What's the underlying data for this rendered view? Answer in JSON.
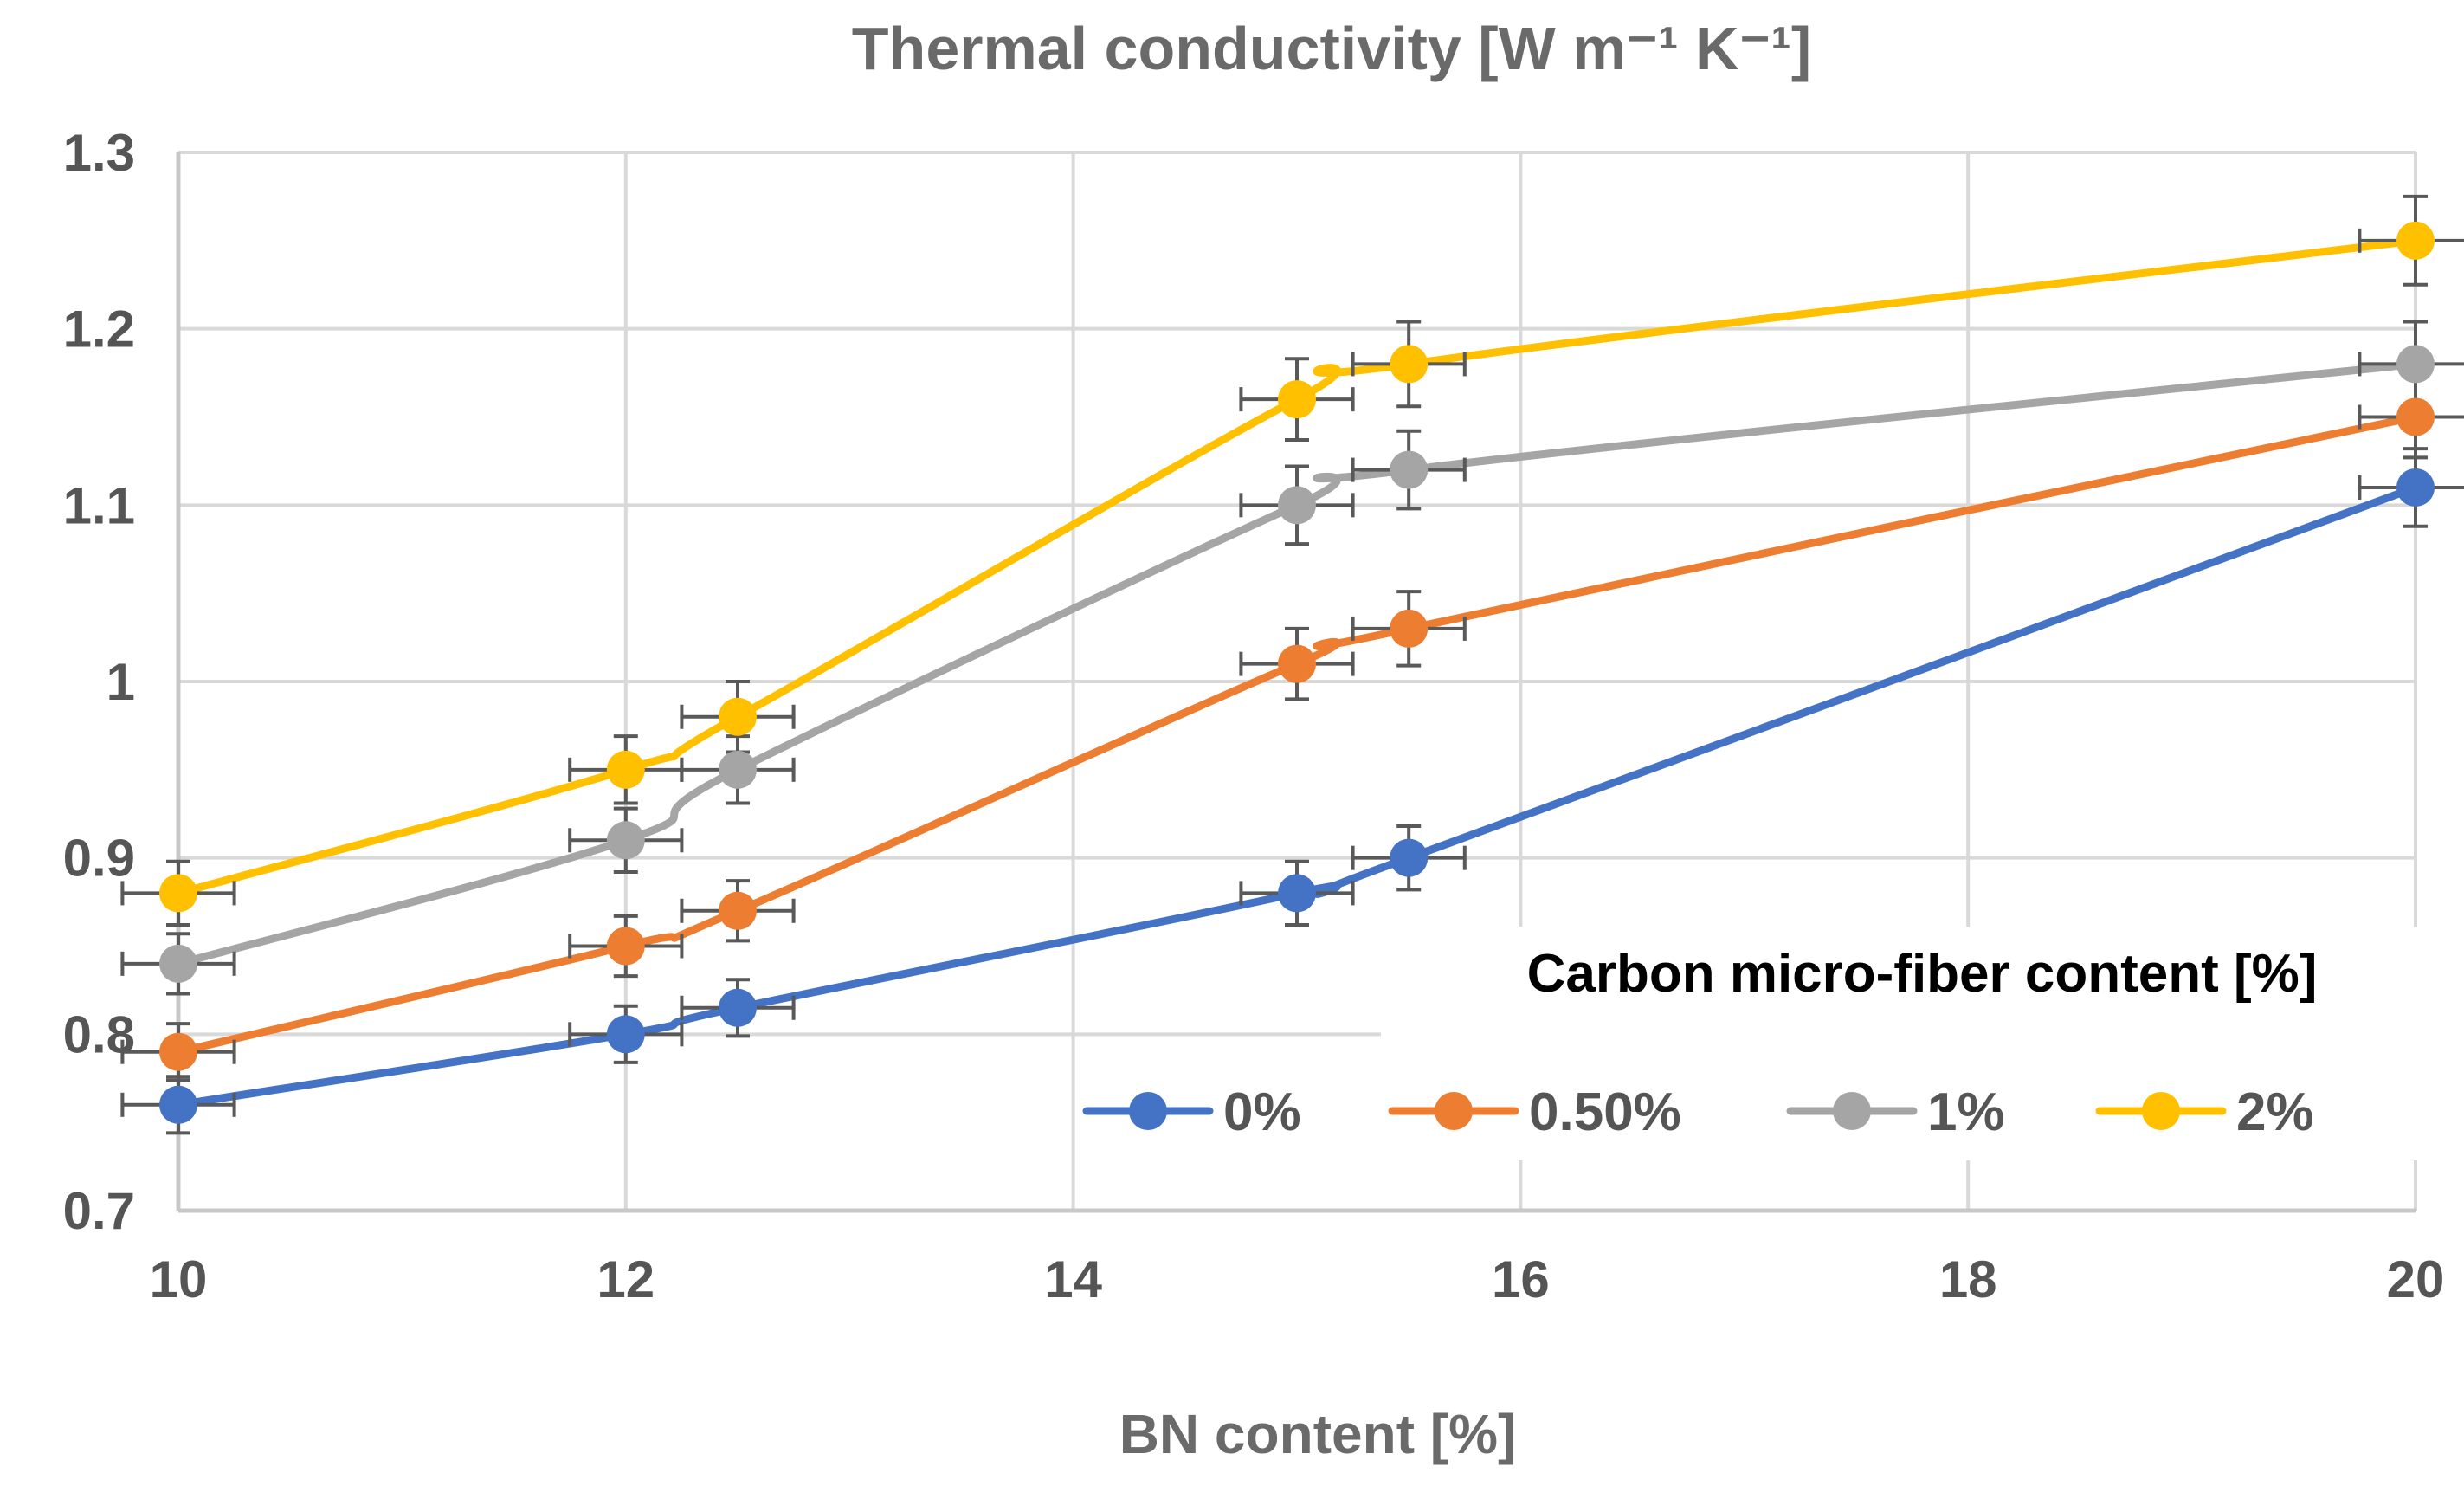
{
  "chart_data": {
    "type": "line",
    "title": "Thermal conductivity [W m⁻¹ K⁻¹]",
    "xlabel": "BN content [%]",
    "ylabel": "",
    "xlim": [
      10,
      20
    ],
    "ylim": [
      0.7,
      1.3
    ],
    "x_ticks": [
      10,
      12,
      14,
      16,
      18,
      20
    ],
    "y_ticks": [
      0.7,
      0.8,
      0.9,
      1,
      1.1,
      1.2,
      1.3
    ],
    "x_tick_labels": [
      "10",
      "12",
      "14",
      "16",
      "18",
      "20"
    ],
    "y_tick_labels": [
      "0.7",
      "0.8",
      "0.9",
      "1",
      "1.1",
      "1.2",
      "1.3"
    ],
    "grid": true,
    "legend_title": "Carbon micro-fiber  content [%]",
    "legend_position": "bottom-right",
    "x_error": 0.25,
    "series": [
      {
        "name": "0%",
        "color": "#4472c4",
        "x": [
          10,
          12,
          12.5,
          15,
          15.5,
          20
        ],
        "y": [
          0.76,
          0.8,
          0.815,
          0.88,
          0.9,
          1.11
        ],
        "y_error": [
          0.016,
          0.016,
          0.016,
          0.018,
          0.018,
          0.022
        ]
      },
      {
        "name": "0.50%",
        "color": "#ed7d31",
        "x": [
          10,
          12,
          12.5,
          15,
          15.5,
          20
        ],
        "y": [
          0.79,
          0.85,
          0.87,
          1.01,
          1.03,
          1.15
        ],
        "y_error": [
          0.016,
          0.017,
          0.017,
          0.02,
          0.021,
          0.023
        ]
      },
      {
        "name": "1%",
        "color": "#a5a5a5",
        "x": [
          10,
          12,
          12.5,
          15,
          15.5,
          20
        ],
        "y": [
          0.84,
          0.91,
          0.95,
          1.1,
          1.12,
          1.18
        ],
        "y_error": [
          0.017,
          0.018,
          0.019,
          0.022,
          0.022,
          0.024
        ]
      },
      {
        "name": "2%",
        "color": "#ffc000",
        "x": [
          10,
          12,
          12.5,
          15,
          15.5,
          20
        ],
        "y": [
          0.88,
          0.95,
          0.98,
          1.16,
          1.18,
          1.25
        ],
        "y_error": [
          0.018,
          0.019,
          0.02,
          0.023,
          0.024,
          0.025
        ]
      }
    ]
  }
}
